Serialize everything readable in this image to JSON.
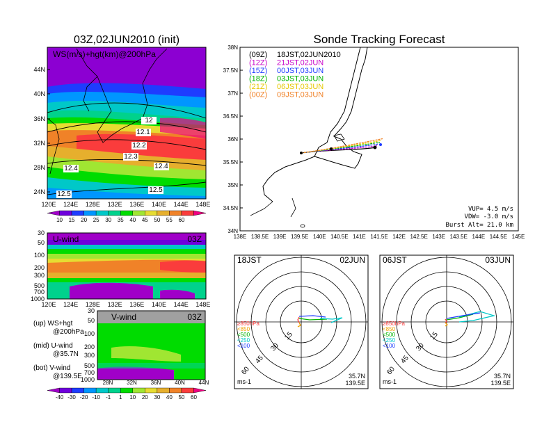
{
  "left_title": "03Z,02JUN2010 (init)",
  "right_title": "Sonde Tracking Forecast",
  "ws_panel": {
    "label": "WS(m/s)+hgt(km)@200hPa",
    "lat_ticks": [
      "44N",
      "40N",
      "36N",
      "32N",
      "28N",
      "24N"
    ],
    "lon_ticks": [
      "120E",
      "124E",
      "128E",
      "132E",
      "136E",
      "140E",
      "144E",
      "148E"
    ],
    "contour_labels": [
      "12",
      "12.1",
      "12.2",
      "12.3",
      "12.4",
      "12.4",
      "12.5",
      "12.5"
    ],
    "colorbar_labels": [
      "10",
      "15",
      "20",
      "25",
      "30",
      "35",
      "40",
      "45",
      "50",
      "55",
      "60"
    ],
    "colorbar_colors": [
      "#a000c8",
      "#6e00dc",
      "#1e3cff",
      "#0096ff",
      "#00c8c8",
      "#00d28c",
      "#00dc00",
      "#a0e632",
      "#e6dc32",
      "#e6af2d",
      "#f08228",
      "#fa3c3c",
      "#f00082"
    ]
  },
  "u_panel": {
    "label": "U-wind",
    "time": "03Z",
    "p_ticks": [
      "30",
      "50",
      "100",
      "200",
      "300",
      "500",
      "700",
      "1000"
    ],
    "lon_ticks": [
      "120E",
      "124E",
      "128E",
      "132E",
      "136E",
      "140E",
      "144E",
      "148E"
    ]
  },
  "v_panel": {
    "label": "V-wind",
    "time": "03Z",
    "p_ticks": [
      "30",
      "50",
      "100",
      "200",
      "300",
      "500",
      "700",
      "1000"
    ],
    "lat_ticks": [
      "28N",
      "32N",
      "36N",
      "40N",
      "44N"
    ]
  },
  "legend_text": [
    "(up) WS+hgt",
    "@200hPa",
    "(mid) U-wind",
    "@35.7N",
    "(bot) V-wind",
    "@139.5E"
  ],
  "bottom_colorbar_labels": [
    "-40",
    "-30",
    "-20",
    "-10",
    "-1",
    "1",
    "10",
    "20",
    "30",
    "40",
    "50",
    "60"
  ],
  "bottom_colorbar_colors": [
    "#a000c8",
    "#6e00dc",
    "#1e3cff",
    "#0096ff",
    "#00c8c8",
    "#00d28c",
    "#00dc00",
    "#a0e632",
    "#e6dc32",
    "#e6af2d",
    "#f08228",
    "#fa3c3c",
    "#f00082"
  ],
  "track_map": {
    "lat_ticks": [
      "38N",
      "37.5N",
      "37N",
      "36.5N",
      "36N",
      "35.5N",
      "35N",
      "34.5N",
      "34N"
    ],
    "lon_ticks": [
      "138E",
      "138.5E",
      "139E",
      "139.5E",
      "140E",
      "140.5E",
      "141E",
      "141.5E",
      "142E",
      "142.5E",
      "143E",
      "143.5E",
      "144E",
      "144.5E",
      "145E"
    ],
    "legend": [
      {
        "z": "(09Z)",
        "jst": "18JST,02JUN2010",
        "color": "#000000"
      },
      {
        "z": "(12Z)",
        "jst": "21JST,02JUN",
        "color": "#c800c8"
      },
      {
        "z": "(15Z)",
        "jst": "00JST,03JUN",
        "color": "#1e3cff"
      },
      {
        "z": "(18Z)",
        "jst": "03JST,03JUN",
        "color": "#00b400"
      },
      {
        "z": "(21Z)",
        "jst": "06JST,03JUN",
        "color": "#e6c800"
      },
      {
        "z": "(00Z)",
        "jst": "09JST,03JUN",
        "color": "#f08228"
      }
    ],
    "vup": "VUP= 4.5 m/s",
    "vdw": "VDW= -3.0 m/s",
    "burst": "Burst Alt= 21.0 km"
  },
  "hodo_left": {
    "time": "18JST",
    "date": "02JUN",
    "rings": [
      "15",
      "30",
      "45",
      "60"
    ],
    "levels": [
      "≥850hPa",
      "<850",
      "<500",
      "<250",
      "<100"
    ],
    "level_colors": [
      "#fa3c3c",
      "#f0a000",
      "#00b400",
      "#00c8c8",
      "#1e3cff"
    ],
    "units": "ms-1",
    "lat": "35.7N",
    "lon": "139.5E"
  },
  "hodo_right": {
    "time": "06JST",
    "date": "03JUN",
    "rings": [
      "15",
      "30",
      "45",
      "60"
    ],
    "levels": [
      "≥850hPa",
      "<850",
      "<500",
      "<250",
      "<100"
    ],
    "level_colors": [
      "#fa3c3c",
      "#f0a000",
      "#00b400",
      "#00c8c8",
      "#1e3cff"
    ],
    "units": "ms-1",
    "lat": "35.7N",
    "lon": "139.5E"
  }
}
